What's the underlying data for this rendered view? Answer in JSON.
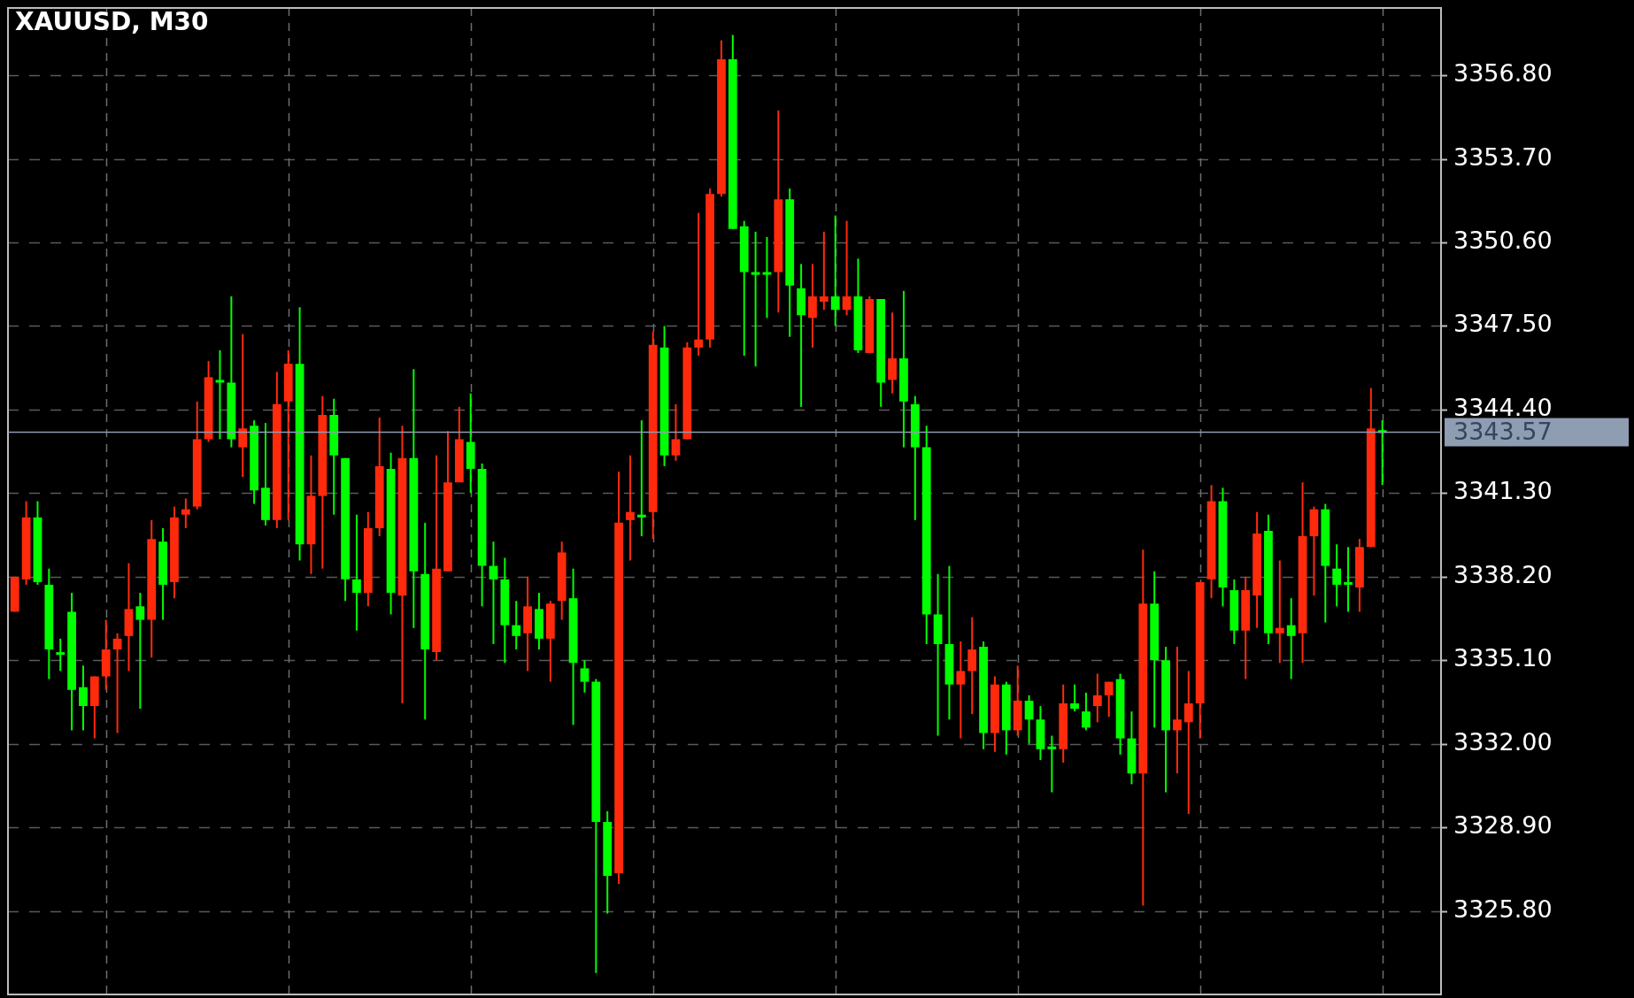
{
  "chart_data": {
    "type": "candlestick",
    "title": "XAUUSD, M30",
    "categories": [
      null,
      null,
      null,
      null,
      null,
      null,
      null,
      null,
      null,
      null,
      null,
      null,
      null,
      null,
      null,
      null,
      null,
      null,
      null,
      null,
      null,
      null,
      null,
      null,
      null,
      null,
      null,
      null,
      null,
      null,
      null,
      null,
      null,
      null,
      null,
      null,
      null,
      null,
      null,
      null,
      null,
      null,
      null,
      null,
      null,
      null,
      null,
      null,
      null,
      null,
      null,
      null,
      null,
      null,
      null,
      null,
      null,
      null,
      null,
      null,
      null,
      null,
      null,
      null,
      null,
      null,
      null,
      null,
      null,
      null,
      null,
      null,
      null,
      null,
      null,
      null,
      null,
      null,
      null,
      null,
      null,
      null,
      null,
      null,
      null,
      null,
      null,
      null,
      null,
      null,
      null,
      null,
      null,
      null,
      null,
      null,
      null,
      null,
      null,
      null,
      null,
      null,
      null,
      null,
      null,
      null,
      null,
      null,
      null,
      null,
      null,
      null,
      null,
      null,
      null,
      null,
      null,
      null,
      null,
      null,
      null
    ],
    "ohlc": [
      [
        3336.9,
        3338.2,
        3336.9,
        3338.2
      ],
      [
        3338.1,
        3341.0,
        3337.9,
        3340.4
      ],
      [
        3340.4,
        3341.0,
        3337.9,
        3338.0
      ],
      [
        3337.9,
        3338.5,
        3334.4,
        3335.5
      ],
      [
        3335.4,
        3335.9,
        3334.7,
        3335.3
      ],
      [
        3336.9,
        3337.6,
        3332.5,
        3334.0
      ],
      [
        3334.1,
        3334.9,
        3332.5,
        3333.4
      ],
      [
        3333.4,
        3334.5,
        3332.2,
        3334.5
      ],
      [
        3334.5,
        3336.6,
        3334.0,
        3335.5
      ],
      [
        3335.5,
        3336.1,
        3332.4,
        3335.9
      ],
      [
        3336.0,
        3338.7,
        3334.7,
        3337.0
      ],
      [
        3337.1,
        3337.6,
        3333.3,
        3336.6
      ],
      [
        3336.6,
        3340.3,
        3335.2,
        3339.6
      ],
      [
        3339.5,
        3340.0,
        3336.6,
        3337.9
      ],
      [
        3338.0,
        3340.8,
        3337.4,
        3340.4
      ],
      [
        3340.5,
        3341.1,
        3340.0,
        3340.7
      ],
      [
        3340.8,
        3344.7,
        3340.7,
        3343.3
      ],
      [
        3343.3,
        3346.2,
        3343.2,
        3345.6
      ],
      [
        3345.5,
        3346.6,
        3343.3,
        3345.4
      ],
      [
        3345.4,
        3348.6,
        3343.0,
        3343.3
      ],
      [
        3343.0,
        3347.2,
        3341.9,
        3343.7
      ],
      [
        3343.8,
        3344.0,
        3340.9,
        3341.4
      ],
      [
        3341.5,
        3343.9,
        3340.1,
        3340.3
      ],
      [
        3340.3,
        3345.8,
        3340.0,
        3344.6
      ],
      [
        3344.7,
        3346.6,
        3340.3,
        3346.1
      ],
      [
        3346.1,
        3348.2,
        3338.8,
        3339.4
      ],
      [
        3339.4,
        3342.7,
        3338.3,
        3341.2
      ],
      [
        3341.2,
        3344.9,
        3338.5,
        3344.2
      ],
      [
        3344.2,
        3344.8,
        3340.5,
        3342.7
      ],
      [
        3342.6,
        3342.6,
        3337.3,
        3338.1
      ],
      [
        3338.1,
        3340.5,
        3336.2,
        3337.6
      ],
      [
        3337.6,
        3340.6,
        3337.1,
        3340.0
      ],
      [
        3340.0,
        3344.1,
        3339.7,
        3342.3
      ],
      [
        3342.2,
        3342.8,
        3336.8,
        3337.6
      ],
      [
        3337.5,
        3343.8,
        3333.5,
        3342.6
      ],
      [
        3342.6,
        3345.9,
        3336.3,
        3338.4
      ],
      [
        3338.3,
        3340.2,
        3332.9,
        3335.5
      ],
      [
        3335.4,
        3342.7,
        3335.1,
        3338.5
      ],
      [
        3338.4,
        3343.6,
        3338.4,
        3341.7
      ],
      [
        3341.7,
        3344.5,
        3341.7,
        3343.3
      ],
      [
        3343.2,
        3345.0,
        3341.3,
        3342.2
      ],
      [
        3342.2,
        3342.4,
        3337.1,
        3338.6
      ],
      [
        3338.6,
        3339.5,
        3335.7,
        3338.1
      ],
      [
        3338.1,
        3338.9,
        3335.0,
        3336.4
      ],
      [
        3336.4,
        3337.3,
        3335.5,
        3336.0
      ],
      [
        3336.1,
        3338.2,
        3334.7,
        3337.1
      ],
      [
        3337.0,
        3337.6,
        3335.5,
        3335.9
      ],
      [
        3335.9,
        3337.3,
        3334.3,
        3337.2
      ],
      [
        3337.3,
        3339.5,
        3336.6,
        3339.1
      ],
      [
        3337.4,
        3338.5,
        3332.7,
        3335.0
      ],
      [
        3334.8,
        3335.1,
        3333.9,
        3334.3
      ],
      [
        3334.3,
        3334.4,
        3323.5,
        3329.1
      ],
      [
        3329.1,
        3329.5,
        3325.7,
        3327.1
      ],
      [
        3327.2,
        3342.1,
        3326.8,
        3340.2
      ],
      [
        3340.3,
        3342.7,
        3338.8,
        3340.6
      ],
      [
        3340.5,
        3344.0,
        3339.7,
        3340.4
      ],
      [
        3340.6,
        3347.3,
        3339.6,
        3346.8
      ],
      [
        3346.7,
        3347.5,
        3342.3,
        3342.7
      ],
      [
        3342.7,
        3344.6,
        3342.5,
        3343.3
      ],
      [
        3343.3,
        3346.9,
        3343.3,
        3346.7
      ],
      [
        3346.7,
        3351.7,
        3346.4,
        3347.0
      ],
      [
        3347.0,
        3352.6,
        3346.7,
        3352.4
      ],
      [
        3352.4,
        3358.1,
        3352.3,
        3357.4
      ],
      [
        3357.4,
        3358.3,
        3351.1,
        3351.1
      ],
      [
        3351.2,
        3351.4,
        3346.4,
        3349.5
      ],
      [
        3349.5,
        3351.0,
        3346.0,
        3349.4
      ],
      [
        3349.5,
        3350.8,
        3347.8,
        3349.4
      ],
      [
        3349.5,
        3355.5,
        3348.0,
        3352.2
      ],
      [
        3352.2,
        3352.6,
        3347.1,
        3349.0
      ],
      [
        3348.9,
        3349.8,
        3344.5,
        3347.9
      ],
      [
        3347.8,
        3349.8,
        3346.7,
        3348.6
      ],
      [
        3348.4,
        3351.0,
        3348.1,
        3348.6
      ],
      [
        3348.6,
        3351.6,
        3347.5,
        3348.1
      ],
      [
        3348.1,
        3351.4,
        3347.9,
        3348.6
      ],
      [
        3348.6,
        3350.0,
        3346.5,
        3346.6
      ],
      [
        3346.5,
        3348.6,
        3346.5,
        3348.5
      ],
      [
        3348.5,
        3348.5,
        3344.5,
        3345.4
      ],
      [
        3345.5,
        3348.0,
        3345.0,
        3346.3
      ],
      [
        3346.3,
        3348.8,
        3343.0,
        3344.7
      ],
      [
        3344.6,
        3344.9,
        3340.3,
        3343.0
      ],
      [
        3343.0,
        3343.8,
        3335.7,
        3336.8
      ],
      [
        3336.8,
        3338.3,
        3332.3,
        3335.7
      ],
      [
        3335.7,
        3338.6,
        3332.9,
        3334.2
      ],
      [
        3334.2,
        3335.8,
        3332.2,
        3334.7
      ],
      [
        3334.7,
        3336.7,
        3333.1,
        3335.5
      ],
      [
        3335.6,
        3335.8,
        3331.8,
        3332.4
      ],
      [
        3332.4,
        3334.5,
        3331.7,
        3334.2
      ],
      [
        3334.2,
        3334.3,
        3331.6,
        3332.5
      ],
      [
        3332.5,
        3334.9,
        3332.3,
        3333.6
      ],
      [
        3333.6,
        3333.8,
        3332.0,
        3332.9
      ],
      [
        3332.9,
        3333.4,
        3331.4,
        3331.8
      ],
      [
        3331.9,
        3332.3,
        3330.2,
        3331.8
      ],
      [
        3331.8,
        3334.2,
        3331.3,
        3333.5
      ],
      [
        3333.5,
        3334.2,
        3333.2,
        3333.3
      ],
      [
        3333.2,
        3333.9,
        3332.5,
        3332.6
      ],
      [
        3333.4,
        3334.6,
        3332.8,
        3333.8
      ],
      [
        3333.8,
        3334.3,
        3333.0,
        3334.3
      ],
      [
        3334.4,
        3334.6,
        3331.6,
        3332.2
      ],
      [
        3332.2,
        3333.2,
        3330.5,
        3330.9
      ],
      [
        3330.9,
        3339.2,
        3326.0,
        3337.2
      ],
      [
        3337.2,
        3338.4,
        3332.6,
        3335.1
      ],
      [
        3335.1,
        3335.6,
        3330.2,
        3332.5
      ],
      [
        3332.5,
        3335.6,
        3330.9,
        3332.9
      ],
      [
        3332.8,
        3334.7,
        3329.4,
        3333.5
      ],
      [
        3333.5,
        3338.0,
        3332.2,
        3338.0
      ],
      [
        3338.1,
        3341.6,
        3337.4,
        3341.0
      ],
      [
        3341.0,
        3341.5,
        3337.1,
        3337.8
      ],
      [
        3337.7,
        3338.1,
        3335.7,
        3336.2
      ],
      [
        3336.2,
        3338.2,
        3334.4,
        3337.7
      ],
      [
        3337.5,
        3340.6,
        3336.3,
        3339.8
      ],
      [
        3339.9,
        3340.5,
        3335.7,
        3336.1
      ],
      [
        3336.1,
        3338.8,
        3335.0,
        3336.3
      ],
      [
        3336.4,
        3337.4,
        3334.4,
        3336.0
      ],
      [
        3336.1,
        3341.7,
        3335.0,
        3339.7
      ],
      [
        3339.7,
        3340.8,
        3337.5,
        3340.7
      ],
      [
        3340.7,
        3340.9,
        3336.5,
        3338.6
      ],
      [
        3338.5,
        3339.4,
        3337.1,
        3337.9
      ],
      [
        3338.0,
        3339.3,
        3336.9,
        3337.9
      ],
      [
        3337.8,
        3339.6,
        3336.9,
        3339.3
      ],
      [
        3339.3,
        3345.2,
        3339.3,
        3343.7
      ],
      [
        3343.6,
        3344.0,
        3341.6,
        3343.57
      ]
    ],
    "colors": [
      "#ff2a0c",
      "#ff2a0c",
      "#00ff00",
      "#00ff00",
      "#00ff00",
      "#00ff00",
      "#00ff00",
      "#ff2a0c",
      "#ff2a0c",
      "#ff2a0c",
      "#ff2a0c",
      "#00ff00",
      "#ff2a0c",
      "#00ff00",
      "#ff2a0c",
      "#ff2a0c",
      "#ff2a0c",
      "#ff2a0c",
      "#00ff00",
      "#00ff00",
      "#ff2a0c",
      "#00ff00",
      "#00ff00",
      "#ff2a0c",
      "#ff2a0c",
      "#00ff00",
      "#ff2a0c",
      "#ff2a0c",
      "#00ff00",
      "#00ff00",
      "#00ff00",
      "#ff2a0c",
      "#ff2a0c",
      "#00ff00",
      "#ff2a0c",
      "#00ff00",
      "#00ff00",
      "#ff2a0c",
      "#ff2a0c",
      "#ff2a0c",
      "#00ff00",
      "#00ff00",
      "#00ff00",
      "#00ff00",
      "#00ff00",
      "#ff2a0c",
      "#00ff00",
      "#ff2a0c",
      "#ff2a0c",
      "#00ff00",
      "#00ff00",
      "#00ff00",
      "#00ff00",
      "#ff2a0c",
      "#ff2a0c",
      "#00ff00",
      "#ff2a0c",
      "#00ff00",
      "#ff2a0c",
      "#ff2a0c",
      "#ff2a0c",
      "#ff2a0c",
      "#ff2a0c",
      "#00ff00",
      "#00ff00",
      "#00ff00",
      "#00ff00",
      "#ff2a0c",
      "#00ff00",
      "#00ff00",
      "#ff2a0c",
      "#ff2a0c",
      "#00ff00",
      "#ff2a0c",
      "#00ff00",
      "#ff2a0c",
      "#00ff00",
      "#ff2a0c",
      "#00ff00",
      "#00ff00",
      "#00ff00",
      "#00ff00",
      "#00ff00",
      "#ff2a0c",
      "#ff2a0c",
      "#00ff00",
      "#ff2a0c",
      "#00ff00",
      "#ff2a0c",
      "#00ff00",
      "#00ff00",
      "#00ff00",
      "#ff2a0c",
      "#00ff00",
      "#00ff00",
      "#ff2a0c",
      "#ff2a0c",
      "#00ff00",
      "#00ff00",
      "#ff2a0c",
      "#00ff00",
      "#00ff00",
      "#ff2a0c",
      "#ff2a0c",
      "#ff2a0c",
      "#ff2a0c",
      "#00ff00",
      "#00ff00",
      "#ff2a0c",
      "#ff2a0c",
      "#00ff00",
      "#ff2a0c",
      "#00ff00",
      "#ff2a0c",
      "#ff2a0c",
      "#00ff00",
      "#00ff00",
      "#00ff00",
      "#ff2a0c",
      "#ff2a0c",
      "#00ff00"
    ],
    "ylim": [
      3322.7,
      3359.3
    ],
    "yticks": [
      {
        "value": 3325.8,
        "label": "3325.80"
      },
      {
        "value": 3328.9,
        "label": "3328.90"
      },
      {
        "value": 3332.0,
        "label": "3332.00"
      },
      {
        "value": 3335.1,
        "label": "3335.10"
      },
      {
        "value": 3338.2,
        "label": "3338.20"
      },
      {
        "value": 3341.3,
        "label": "3341.30"
      },
      {
        "value": 3344.4,
        "label": "3344.40"
      },
      {
        "value": 3347.5,
        "label": "3347.50"
      },
      {
        "value": 3350.6,
        "label": "3350.60"
      },
      {
        "value": 3353.7,
        "label": "3353.70"
      },
      {
        "value": 3356.8,
        "label": "3356.80"
      }
    ],
    "tick_labels": "y",
    "grid": true,
    "ref_lines": [
      {
        "axis": "y",
        "value": 3343.57,
        "label": "3343.57",
        "color": "#8e9db2"
      }
    ]
  }
}
